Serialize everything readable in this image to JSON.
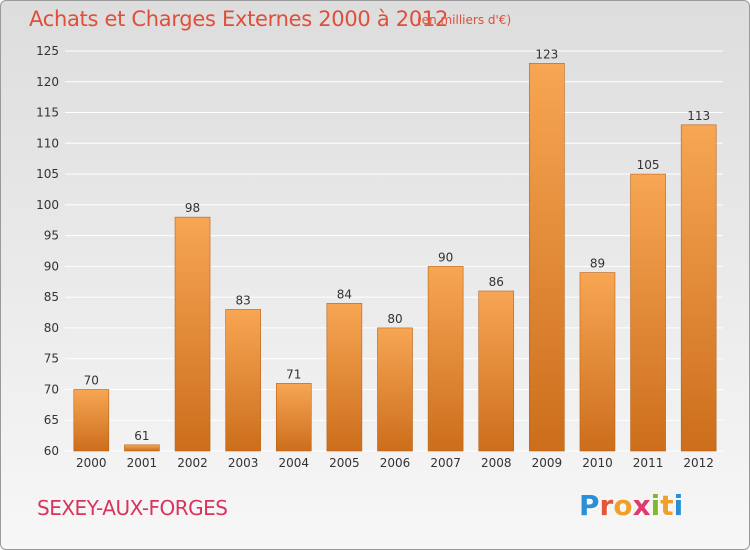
{
  "chart_data": {
    "type": "bar",
    "title": "Achats et Charges Externes 2000 à 2012",
    "subtitle": "(en milliers d'€)",
    "categories": [
      "2000",
      "2001",
      "2002",
      "2003",
      "2004",
      "2005",
      "2006",
      "2007",
      "2008",
      "2009",
      "2010",
      "2011",
      "2012"
    ],
    "values": [
      70,
      61,
      98,
      83,
      71,
      84,
      80,
      90,
      86,
      123,
      89,
      105,
      113
    ],
    "ylim": [
      60,
      125
    ],
    "yticks": [
      60,
      65,
      70,
      75,
      80,
      85,
      90,
      95,
      100,
      105,
      110,
      115,
      120,
      125
    ],
    "grid": true,
    "colors": {
      "bar_light": "#f7a654",
      "bar_dark": "#cc6e1c",
      "bar_border": "#b86318",
      "grid": "#ffffff"
    }
  },
  "footer": {
    "commune": "SEXEY-AUX-FORGES",
    "brand_letters": [
      {
        "ch": "P",
        "color": "#2b8fd6"
      },
      {
        "ch": "r",
        "color": "#e2563a"
      },
      {
        "ch": "o",
        "color": "#f0a02a"
      },
      {
        "ch": "x",
        "color": "#e23a6e"
      },
      {
        "ch": "i",
        "color": "#7dbb2c"
      },
      {
        "ch": "t",
        "color": "#f0a02a"
      },
      {
        "ch": "i",
        "color": "#2b8fd6"
      }
    ]
  }
}
